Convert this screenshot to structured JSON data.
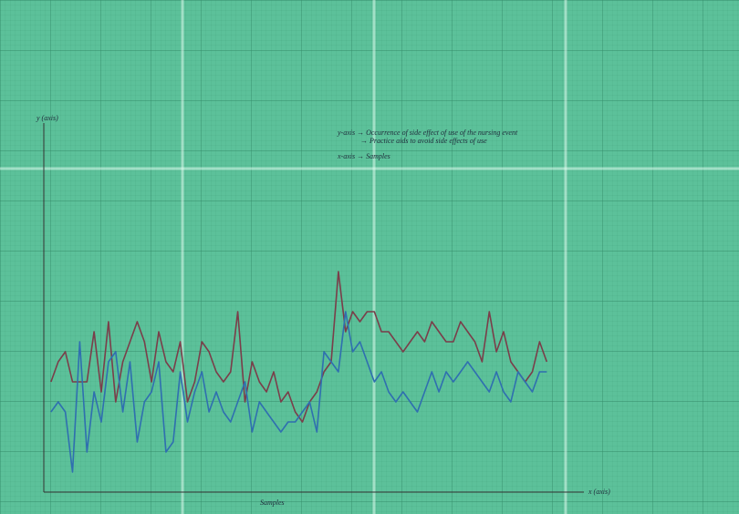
{
  "chart_data": {
    "type": "line",
    "y_axis_label": "y (axis)",
    "x_axis_label": "x (axis)",
    "x_title": "Samples",
    "notes": [
      "y-axis → Occurrence of side effect of use of the nursing event",
      "→ Practice aids to avoid side effects of use",
      "x-axis → Samples"
    ],
    "x": [
      1,
      2,
      3,
      4,
      5,
      6,
      7,
      8,
      9,
      10,
      11,
      12,
      13,
      14,
      15,
      16,
      17,
      18,
      19,
      20,
      21,
      22,
      23,
      24,
      25,
      26,
      27,
      28,
      29,
      30,
      31,
      32,
      33,
      34,
      35,
      36,
      37,
      38,
      39,
      40,
      41,
      42,
      43,
      44,
      45,
      46,
      47,
      48,
      49,
      50,
      51,
      52,
      53,
      54,
      55,
      56,
      57,
      58,
      59,
      60,
      61,
      62,
      63,
      64,
      65,
      66,
      67,
      68,
      69,
      70
    ],
    "xlim": [
      0,
      72
    ],
    "ylim": [
      0,
      23
    ],
    "series": [
      {
        "name": "Occurrence of side effect",
        "color": "#7a3e4a",
        "values": [
          11,
          13,
          14,
          11,
          11,
          11,
          16,
          10,
          17,
          9,
          13,
          15,
          17,
          15,
          11,
          16,
          13,
          12,
          15,
          9,
          11,
          15,
          14,
          12,
          11,
          12,
          18,
          9,
          13,
          11,
          10,
          12,
          9,
          10,
          8,
          7,
          9,
          10,
          12,
          13,
          22,
          16,
          18,
          17,
          18,
          18,
          16,
          16,
          15,
          14,
          15,
          16,
          15,
          17,
          16,
          15,
          15,
          17,
          16,
          15,
          13,
          18,
          14,
          16,
          13,
          12,
          11,
          12,
          15,
          13
        ]
      },
      {
        "name": "Practice aids",
        "color": "#2f6fb0",
        "values": [
          8,
          9,
          8,
          2,
          15,
          4,
          10,
          7,
          13,
          14,
          8,
          13,
          5,
          9,
          10,
          13,
          4,
          5,
          12,
          7,
          10,
          12,
          8,
          10,
          8,
          7,
          9,
          11,
          6,
          9,
          8,
          7,
          6,
          7,
          7,
          8,
          9,
          6,
          14,
          13,
          12,
          18,
          14,
          15,
          13,
          11,
          12,
          10,
          9,
          10,
          9,
          8,
          10,
          12,
          10,
          12,
          11,
          12,
          13,
          12,
          11,
          10,
          12,
          10,
          9,
          12,
          11,
          10,
          12,
          12
        ]
      }
    ]
  }
}
